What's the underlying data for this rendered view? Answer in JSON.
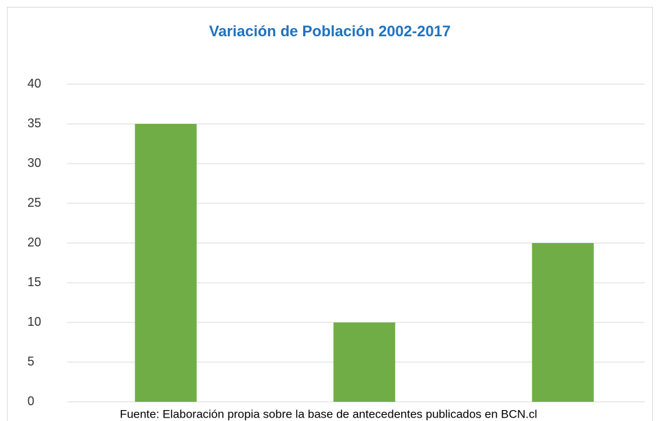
{
  "chart_data": {
    "type": "bar",
    "title": "Variación de Población 2002-2017",
    "categories": [
      null,
      null,
      null
    ],
    "values": [
      35,
      10,
      20
    ],
    "color": "#70ad47",
    "ylim": [
      0,
      40
    ],
    "yticks": [
      0,
      5,
      10,
      15,
      20,
      25,
      30,
      35,
      40
    ],
    "grid": true,
    "caption": "Fuente: Elaboración propia sobre la base de antecedentes publicados en BCN.cl"
  }
}
